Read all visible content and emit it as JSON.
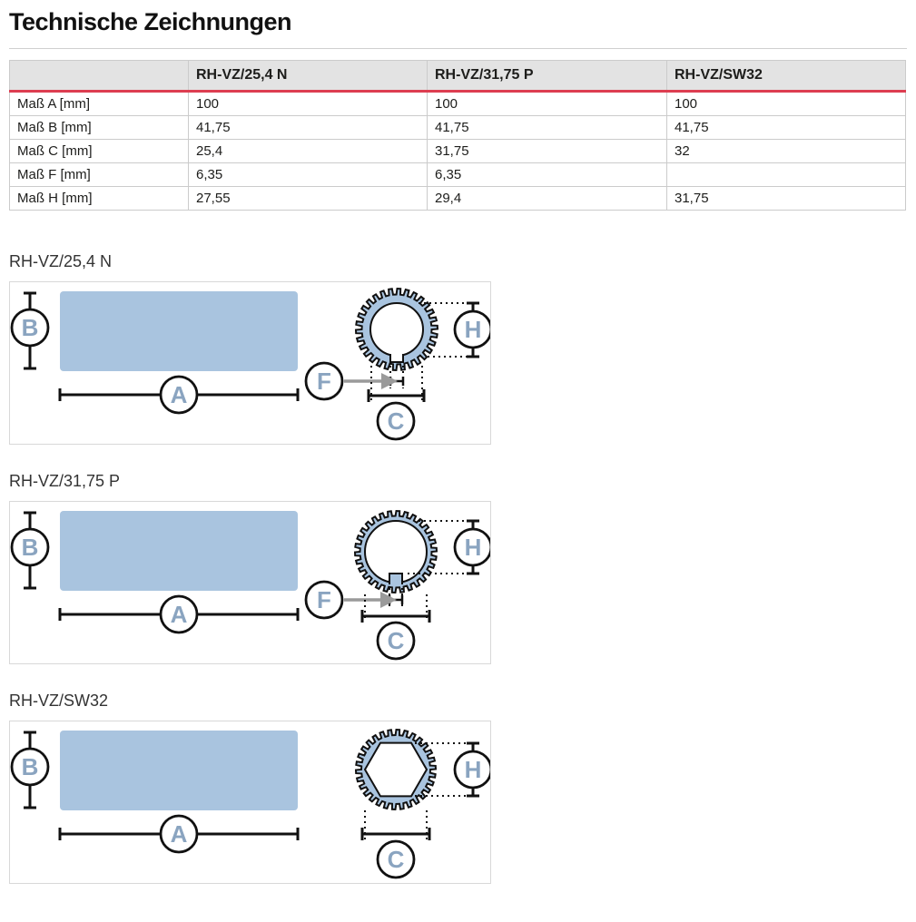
{
  "page": {
    "title": "Technische Zeichnungen"
  },
  "table": {
    "columns": [
      "",
      "RH-VZ/25,4 N",
      "RH-VZ/31,75 P",
      "RH-VZ/SW32"
    ],
    "rows": [
      {
        "label": "Maß A [mm]",
        "values": [
          "100",
          "100",
          "100"
        ]
      },
      {
        "label": "Maß B [mm]",
        "values": [
          "41,75",
          "41,75",
          "41,75"
        ]
      },
      {
        "label": "Maß C [mm]",
        "values": [
          "25,4",
          "31,75",
          "32"
        ]
      },
      {
        "label": "Maß F [mm]",
        "values": [
          "6,35",
          "6,35",
          ""
        ]
      },
      {
        "label": "Maß H [mm]",
        "values": [
          "27,55",
          "29,4",
          "31,75"
        ]
      }
    ]
  },
  "drawings": [
    {
      "title": "RH-VZ/25,4 N",
      "markers": {
        "a": "A",
        "b": "B",
        "c": "C",
        "f": "F",
        "h": "H"
      }
    },
    {
      "title": "RH-VZ/31,75 P",
      "markers": {
        "a": "A",
        "b": "B",
        "c": "C",
        "f": "F",
        "h": "H"
      }
    },
    {
      "title": "RH-VZ/SW32",
      "markers": {
        "a": "A",
        "b": "B",
        "c": "C",
        "h": "H"
      }
    }
  ],
  "colors": {
    "accent_red": "#dd3e51",
    "part_fill_blue": "#a9c4df",
    "marker_letter_blue": "#8aa4c0",
    "arrow_gray": "#9a9a9a",
    "header_gray": "#e3e3e3"
  }
}
